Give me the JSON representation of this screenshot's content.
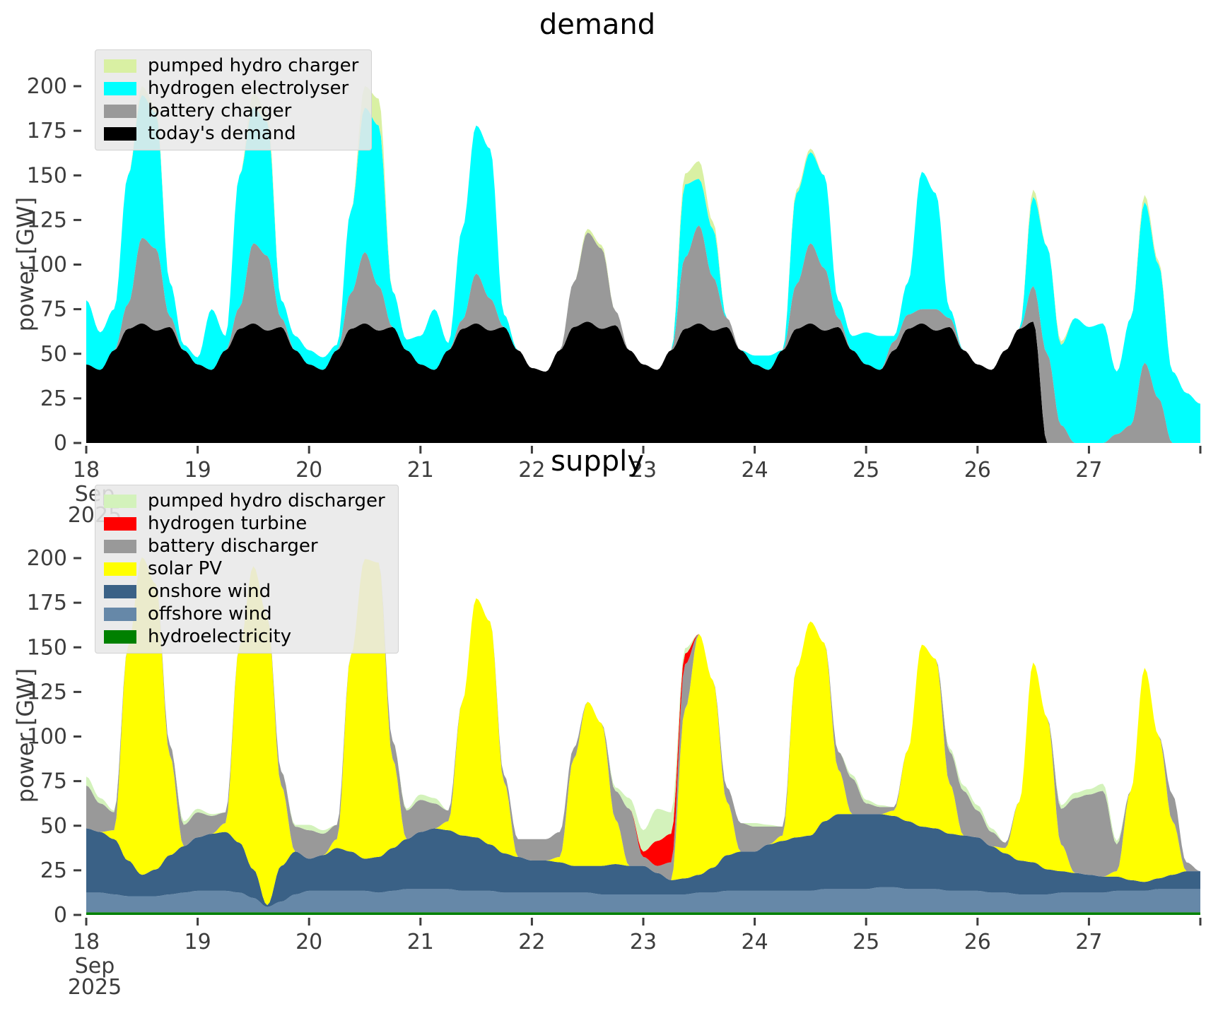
{
  "page": {
    "background": "#ffffff"
  },
  "style": {
    "text_color": "#3d3d3d",
    "tick_color": "#3d3d3d",
    "legend_bg": "#e9e9e9",
    "legend_border": "#d2d2d2"
  },
  "chart_data": [
    {
      "id": "demand",
      "type": "area",
      "title": "demand",
      "ylabel": "power [GW]",
      "x": {
        "start": 18,
        "step": 0.125,
        "count": 81,
        "min": 18,
        "max": 28,
        "unit": "day of month",
        "month_label": [
          "Sep",
          "2025"
        ]
      },
      "ylim": [
        0,
        218
      ],
      "grid": false,
      "legend_position": "upper left",
      "yticks": [
        0,
        25,
        50,
        75,
        100,
        125,
        150,
        175,
        200
      ],
      "xticks": {
        "values": [
          18,
          19,
          20,
          21,
          22,
          23,
          24,
          25,
          26,
          27,
          28
        ],
        "labels": [
          "18",
          "19",
          "20",
          "21",
          "22",
          "23",
          "24",
          "25",
          "26",
          "27",
          ""
        ]
      },
      "legend": [
        {
          "label": "pumped hydro charger",
          "color": "#d9f0a3"
        },
        {
          "label": "hydrogen electrolyser",
          "color": "#00ffff"
        },
        {
          "label": "battery charger",
          "color": "#999999"
        },
        {
          "label": "today's demand",
          "color": "#000000"
        }
      ],
      "series": [
        {
          "name": "todays_demand",
          "label": "today's demand",
          "color": "#000000",
          "values": [
            44,
            41,
            52,
            64,
            67,
            63,
            65,
            52,
            44,
            41,
            52,
            64,
            67,
            63,
            65,
            52,
            44,
            41,
            52,
            64,
            67,
            63,
            65,
            52,
            44,
            41,
            52,
            64,
            67,
            63,
            65,
            52,
            42,
            40,
            52,
            65,
            68,
            64,
            66,
            52,
            44,
            41,
            52,
            64,
            67,
            63,
            65,
            52,
            44,
            41,
            52,
            64,
            67,
            63,
            65,
            52,
            44,
            41,
            52,
            64,
            67,
            63,
            65,
            52,
            44,
            41,
            52,
            64,
            68,
            0,
            0,
            0,
            0,
            0,
            0,
            0,
            0,
            0,
            0,
            0,
            0
          ]
        },
        {
          "name": "battery_charger",
          "label": "battery charger",
          "color": "#999999",
          "values": [
            0,
            0,
            0,
            14,
            48,
            46,
            6,
            0,
            0,
            0,
            0,
            12,
            45,
            42,
            5,
            0,
            0,
            0,
            0,
            20,
            40,
            25,
            0,
            0,
            0,
            0,
            0,
            5,
            28,
            18,
            0,
            0,
            0,
            0,
            0,
            25,
            50,
            45,
            8,
            0,
            0,
            0,
            0,
            40,
            55,
            30,
            5,
            0,
            0,
            0,
            0,
            25,
            45,
            35,
            5,
            0,
            0,
            0,
            5,
            8,
            8,
            12,
            5,
            0,
            0,
            0,
            0,
            0,
            20,
            50,
            10,
            0,
            0,
            0,
            5,
            10,
            45,
            25,
            0,
            0,
            0
          ]
        },
        {
          "name": "hydrogen_electrolyser",
          "label": "hydrogen electrolyser",
          "color": "#00ffff",
          "values": [
            36,
            21,
            23,
            72,
            80,
            76,
            19,
            3,
            4,
            34,
            8,
            74,
            76,
            75,
            10,
            8,
            8,
            7,
            3,
            46,
            81,
            90,
            20,
            6,
            16,
            34,
            4,
            51,
            83,
            84,
            7,
            0,
            0,
            0,
            0,
            0,
            0,
            0,
            0,
            0,
            0,
            0,
            0,
            41,
            26,
            27,
            0,
            0,
            5,
            8,
            0,
            51,
            51,
            52,
            10,
            8,
            18,
            19,
            3,
            18,
            77,
            65,
            5,
            0,
            0,
            0,
            0,
            0,
            50,
            60,
            45,
            70,
            65,
            67,
            35,
            60,
            90,
            75,
            40,
            28,
            22
          ]
        },
        {
          "name": "pumped_hydro_charger",
          "label": "pumped hydro charger",
          "color": "#d9f0a3",
          "values": [
            0,
            0,
            0,
            0,
            5,
            3,
            0,
            0,
            0,
            0,
            0,
            0,
            8,
            6,
            0,
            0,
            0,
            0,
            0,
            0,
            12,
            15,
            0,
            0,
            0,
            0,
            0,
            0,
            0,
            0,
            0,
            0,
            0,
            0,
            0,
            0,
            2,
            2,
            0,
            0,
            0,
            0,
            0,
            6,
            10,
            4,
            0,
            0,
            0,
            0,
            0,
            2,
            2,
            0,
            0,
            0,
            0,
            0,
            0,
            0,
            0,
            0,
            0,
            0,
            0,
            0,
            0,
            0,
            4,
            0,
            2,
            0,
            0,
            0,
            0,
            0,
            4,
            2,
            0,
            0,
            0
          ]
        }
      ]
    },
    {
      "id": "supply",
      "type": "area",
      "title": "supply",
      "ylabel": "power [GW]",
      "x": {
        "start": 18,
        "step": 0.125,
        "count": 81,
        "min": 18,
        "max": 28,
        "unit": "day of month",
        "month_label": [
          "Sep",
          "2025"
        ]
      },
      "ylim": [
        0,
        218
      ],
      "grid": false,
      "legend_position": "upper left",
      "yticks": [
        0,
        25,
        50,
        75,
        100,
        125,
        150,
        175,
        200
      ],
      "xticks": {
        "values": [
          18,
          19,
          20,
          21,
          22,
          23,
          24,
          25,
          26,
          27,
          28
        ],
        "labels": [
          "18",
          "19",
          "20",
          "21",
          "22",
          "23",
          "24",
          "25",
          "26",
          "27",
          ""
        ]
      },
      "legend": [
        {
          "label": "pumped hydro discharger",
          "color": "#d3f2bb"
        },
        {
          "label": "hydrogen turbine",
          "color": "#ff0000"
        },
        {
          "label": "battery discharger",
          "color": "#999999"
        },
        {
          "label": "solar PV",
          "color": "#ffff00"
        },
        {
          "label": "onshore wind",
          "color": "#3a6186"
        },
        {
          "label": "offshore wind",
          "color": "#6688a8"
        },
        {
          "label": "hydroelectricity",
          "color": "#008000"
        }
      ],
      "series": [
        {
          "name": "hydroelectricity",
          "label": "hydroelectricity",
          "color": "#008000",
          "values": [
            1.5,
            1.5,
            1.5,
            1.5,
            1.5,
            1.5,
            1.5,
            1.5,
            1.5,
            1.5,
            1.5,
            1.5,
            1.5,
            1.5,
            1.5,
            1.5,
            1.5,
            1.5,
            1.5,
            1.5,
            1.5,
            1.5,
            1.5,
            1.5,
            1.5,
            1.5,
            1.5,
            1.5,
            1.5,
            1.5,
            1.5,
            1.5,
            1.5,
            1.5,
            1.5,
            1.5,
            1.5,
            1.5,
            1.5,
            1.5,
            1.5,
            1.5,
            1.5,
            1.5,
            1.5,
            1.5,
            1.5,
            1.5,
            1.5,
            1.5,
            1.5,
            1.5,
            1.5,
            1.5,
            1.5,
            1.5,
            1.5,
            1.5,
            1.5,
            1.5,
            1.5,
            1.5,
            1.5,
            1.5,
            1.5,
            1.5,
            1.5,
            1.5,
            1.5,
            1.5,
            1.5,
            1.5,
            1.5,
            1.5,
            1.5,
            1.5,
            1.5,
            1.5,
            1.5,
            1.5,
            1.5
          ]
        },
        {
          "name": "offshore_wind",
          "label": "offshore wind",
          "color": "#6688a8",
          "values": [
            11,
            11,
            10,
            9,
            9,
            9,
            10,
            11,
            12,
            12,
            12,
            11,
            8,
            3,
            6,
            10,
            12,
            12,
            12,
            12,
            12,
            11,
            12,
            13,
            13,
            13,
            13,
            12,
            12,
            12,
            11,
            11,
            11,
            11,
            11,
            11,
            11,
            10,
            10,
            10,
            10,
            10,
            10,
            10,
            11,
            11,
            12,
            12,
            12,
            12,
            12,
            12,
            12,
            13,
            13,
            13,
            13,
            14,
            14,
            13,
            13,
            13,
            12,
            12,
            12,
            11,
            11,
            10,
            10,
            10,
            11,
            11,
            11,
            11,
            12,
            12,
            12,
            13,
            13,
            13,
            13
          ]
        },
        {
          "name": "onshore_wind",
          "label": "onshore wind",
          "color": "#3a6186",
          "values": [
            36,
            34,
            31,
            20,
            12,
            15,
            22,
            26,
            30,
            32,
            33,
            28,
            16,
            1,
            20,
            24,
            18,
            20,
            24,
            22,
            18,
            20,
            24,
            28,
            32,
            34,
            33,
            31,
            30,
            26,
            22,
            20,
            18,
            18,
            17,
            15,
            15,
            16,
            17,
            16,
            16,
            12,
            8,
            9,
            10,
            14,
            20,
            22,
            22,
            26,
            28,
            30,
            31,
            38,
            42,
            42,
            42,
            41,
            40,
            38,
            35,
            34,
            32,
            31,
            30,
            26,
            22,
            19,
            18,
            14,
            12,
            11,
            10,
            9,
            8,
            6,
            5,
            6,
            8,
            10,
            10
          ]
        },
        {
          "name": "solar_pv",
          "label": "solar PV",
          "color": "#ffff00",
          "values": [
            0,
            0,
            5,
            120,
            178,
            160,
            56,
            0,
            0,
            0,
            5,
            110,
            170,
            162,
            45,
            0,
            0,
            0,
            5,
            110,
            168,
            165,
            50,
            0,
            0,
            0,
            5,
            75,
            134,
            125,
            40,
            0,
            0,
            0,
            3,
            60,
            92,
            80,
            25,
            0,
            0,
            0,
            0,
            95,
            135,
            105,
            30,
            0,
            0,
            0,
            3,
            95,
            120,
            100,
            25,
            0,
            0,
            0,
            3,
            40,
            102,
            95,
            28,
            0,
            0,
            0,
            3,
            33,
            112,
            85,
            15,
            0,
            0,
            0,
            3,
            50,
            120,
            80,
            30,
            0,
            0
          ]
        },
        {
          "name": "battery_discharger",
          "label": "battery discharger",
          "color": "#999999",
          "values": [
            24,
            16,
            10,
            0,
            0,
            0,
            6,
            12,
            14,
            10,
            6,
            0,
            0,
            0,
            8,
            14,
            16,
            12,
            8,
            0,
            0,
            0,
            10,
            16,
            18,
            14,
            6,
            0,
            0,
            0,
            4,
            10,
            12,
            12,
            14,
            6,
            0,
            0,
            16,
            32,
            5,
            4,
            10,
            25,
            0,
            0,
            8,
            16,
            14,
            10,
            5,
            0,
            0,
            0,
            10,
            20,
            6,
            4,
            2,
            0,
            0,
            0,
            18,
            25,
            15,
            8,
            3,
            0,
            0,
            0,
            20,
            42,
            45,
            48,
            15,
            0,
            0,
            0,
            15,
            5,
            0
          ]
        },
        {
          "name": "hydrogen_turbine",
          "label": "hydrogen turbine",
          "color": "#ff0000",
          "values": [
            0,
            0,
            0,
            0,
            0,
            0,
            0,
            0,
            0,
            0,
            0,
            0,
            0,
            0,
            0,
            0,
            0,
            0,
            0,
            0,
            0,
            0,
            0,
            0,
            0,
            0,
            0,
            0,
            0,
            0,
            0,
            0,
            0,
            0,
            0,
            0,
            0,
            0,
            0,
            0,
            3,
            14,
            16,
            6,
            0,
            0,
            0,
            0,
            0,
            0,
            0,
            0,
            0,
            0,
            0,
            0,
            0,
            0,
            0,
            0,
            0,
            0,
            0,
            0,
            0,
            0,
            0,
            0,
            0,
            0,
            0,
            0,
            0,
            0,
            0,
            0,
            0,
            0,
            0,
            0,
            0
          ]
        },
        {
          "name": "pumped_hydro_discharger",
          "label": "pumped hydro discharger",
          "color": "#d3f2bb",
          "values": [
            5,
            3,
            1,
            0,
            0,
            0,
            0,
            2,
            2,
            1,
            0,
            0,
            0,
            0,
            0,
            1,
            3,
            2,
            0,
            0,
            0,
            0,
            0,
            1,
            3,
            3,
            0,
            0,
            0,
            0,
            0,
            0,
            0,
            0,
            0,
            0,
            0,
            0,
            2,
            6,
            12,
            18,
            12,
            3,
            0,
            0,
            0,
            0,
            2,
            1,
            0,
            0,
            0,
            0,
            0,
            2,
            2,
            1,
            0,
            0,
            0,
            0,
            2,
            3,
            3,
            2,
            0,
            0,
            0,
            0,
            2,
            3,
            3,
            4,
            2,
            0,
            0,
            0,
            0,
            0,
            0
          ]
        }
      ]
    }
  ]
}
